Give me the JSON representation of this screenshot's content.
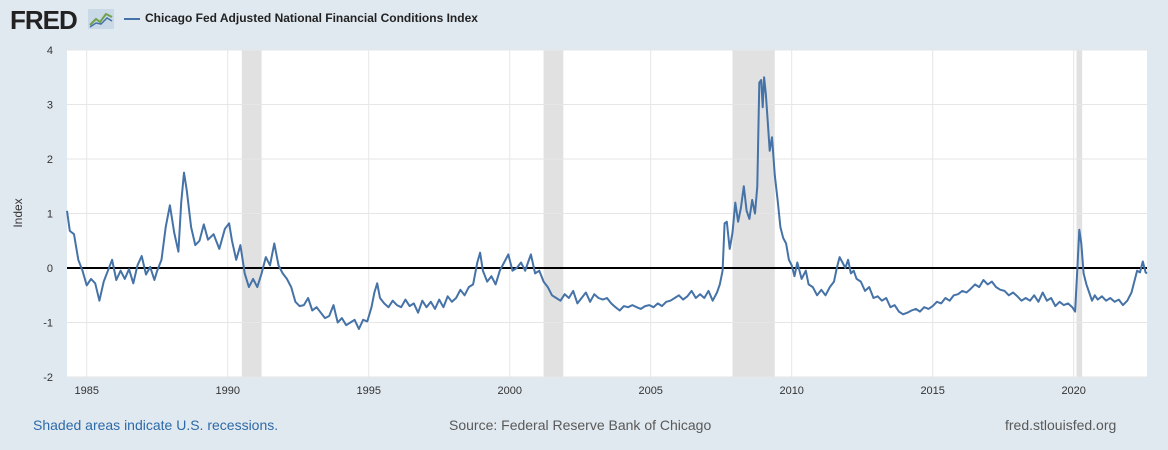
{
  "header": {
    "logo_text": "FRED",
    "logo_icon": "fred-line-graph-icon",
    "legend_label": "Chicago Fed Adjusted National Financial Conditions Index",
    "series_color": "#4572a7"
  },
  "footer": {
    "recession_note": "Shaded areas indicate U.S. recessions.",
    "source": "Source: Federal Reserve Bank of Chicago",
    "site": "fred.stlouisfed.org"
  },
  "chart_data": {
    "type": "line",
    "title": "",
    "xlabel": "",
    "ylabel": "Index",
    "xlim": [
      1984.3,
      2022.6
    ],
    "ylim": [
      -2,
      4
    ],
    "y_ticks": [
      4,
      3,
      2,
      1,
      0,
      -1,
      -2
    ],
    "x_ticks": [
      1985,
      1990,
      1995,
      2000,
      2005,
      2010,
      2015,
      2020
    ],
    "grid": true,
    "zero_line": true,
    "recessions": [
      [
        1990.5,
        1991.2
      ],
      [
        2001.2,
        2001.9
      ],
      [
        2007.9,
        2009.4
      ],
      [
        2020.1,
        2020.3
      ]
    ],
    "series": [
      {
        "values": [
          [
            1984.3,
            1.05
          ],
          [
            1984.4,
            0.68
          ],
          [
            1984.55,
            0.62
          ],
          [
            1984.7,
            0.15
          ],
          [
            1984.85,
            -0.05
          ],
          [
            1985.0,
            -0.32
          ],
          [
            1985.15,
            -0.2
          ],
          [
            1985.3,
            -0.28
          ],
          [
            1985.45,
            -0.6
          ],
          [
            1985.6,
            -0.25
          ],
          [
            1985.75,
            -0.05
          ],
          [
            1985.9,
            0.15
          ],
          [
            1986.05,
            -0.22
          ],
          [
            1986.2,
            -0.05
          ],
          [
            1986.35,
            -0.2
          ],
          [
            1986.5,
            -0.02
          ],
          [
            1986.65,
            -0.28
          ],
          [
            1986.8,
            0.05
          ],
          [
            1986.95,
            0.22
          ],
          [
            1987.1,
            -0.12
          ],
          [
            1987.25,
            0.02
          ],
          [
            1987.4,
            -0.22
          ],
          [
            1987.5,
            -0.05
          ],
          [
            1987.65,
            0.15
          ],
          [
            1987.8,
            0.75
          ],
          [
            1987.95,
            1.15
          ],
          [
            1988.1,
            0.65
          ],
          [
            1988.25,
            0.3
          ],
          [
            1988.35,
            1.2
          ],
          [
            1988.45,
            1.75
          ],
          [
            1988.55,
            1.42
          ],
          [
            1988.7,
            0.75
          ],
          [
            1988.85,
            0.42
          ],
          [
            1989.0,
            0.5
          ],
          [
            1989.15,
            0.8
          ],
          [
            1989.3,
            0.52
          ],
          [
            1989.5,
            0.62
          ],
          [
            1989.7,
            0.35
          ],
          [
            1989.9,
            0.72
          ],
          [
            1990.05,
            0.82
          ],
          [
            1990.15,
            0.5
          ],
          [
            1990.3,
            0.15
          ],
          [
            1990.45,
            0.42
          ],
          [
            1990.6,
            -0.1
          ],
          [
            1990.75,
            -0.35
          ],
          [
            1990.9,
            -0.2
          ],
          [
            1991.05,
            -0.35
          ],
          [
            1991.2,
            -0.1
          ],
          [
            1991.35,
            0.2
          ],
          [
            1991.5,
            0.05
          ],
          [
            1991.65,
            0.45
          ],
          [
            1991.8,
            0.05
          ],
          [
            1991.95,
            -0.1
          ],
          [
            1992.1,
            -0.2
          ],
          [
            1992.25,
            -0.35
          ],
          [
            1992.4,
            -0.62
          ],
          [
            1992.55,
            -0.7
          ],
          [
            1992.7,
            -0.68
          ],
          [
            1992.85,
            -0.55
          ],
          [
            1993.0,
            -0.78
          ],
          [
            1993.15,
            -0.72
          ],
          [
            1993.3,
            -0.82
          ],
          [
            1993.45,
            -0.92
          ],
          [
            1993.6,
            -0.88
          ],
          [
            1993.75,
            -0.68
          ],
          [
            1993.9,
            -1.0
          ],
          [
            1994.05,
            -0.92
          ],
          [
            1994.2,
            -1.05
          ],
          [
            1994.35,
            -1.0
          ],
          [
            1994.5,
            -0.95
          ],
          [
            1994.65,
            -1.12
          ],
          [
            1994.8,
            -0.95
          ],
          [
            1994.95,
            -0.98
          ],
          [
            1995.1,
            -0.72
          ],
          [
            1995.2,
            -0.45
          ],
          [
            1995.3,
            -0.28
          ],
          [
            1995.4,
            -0.55
          ],
          [
            1995.55,
            -0.65
          ],
          [
            1995.7,
            -0.72
          ],
          [
            1995.85,
            -0.6
          ],
          [
            1996.0,
            -0.68
          ],
          [
            1996.15,
            -0.72
          ],
          [
            1996.3,
            -0.58
          ],
          [
            1996.45,
            -0.7
          ],
          [
            1996.6,
            -0.65
          ],
          [
            1996.75,
            -0.82
          ],
          [
            1996.9,
            -0.6
          ],
          [
            1997.05,
            -0.72
          ],
          [
            1997.2,
            -0.62
          ],
          [
            1997.35,
            -0.75
          ],
          [
            1997.5,
            -0.58
          ],
          [
            1997.65,
            -0.72
          ],
          [
            1997.8,
            -0.52
          ],
          [
            1997.95,
            -0.62
          ],
          [
            1998.1,
            -0.55
          ],
          [
            1998.25,
            -0.4
          ],
          [
            1998.4,
            -0.5
          ],
          [
            1998.55,
            -0.35
          ],
          [
            1998.7,
            -0.3
          ],
          [
            1998.85,
            0.1
          ],
          [
            1998.95,
            0.28
          ],
          [
            1999.05,
            -0.05
          ],
          [
            1999.2,
            -0.25
          ],
          [
            1999.35,
            -0.15
          ],
          [
            1999.5,
            -0.3
          ],
          [
            1999.65,
            -0.05
          ],
          [
            1999.8,
            0.1
          ],
          [
            1999.95,
            0.25
          ],
          [
            2000.1,
            -0.05
          ],
          [
            2000.25,
            0.0
          ],
          [
            2000.4,
            0.1
          ],
          [
            2000.55,
            -0.05
          ],
          [
            2000.65,
            0.1
          ],
          [
            2000.75,
            0.25
          ],
          [
            2000.9,
            -0.1
          ],
          [
            2001.05,
            -0.05
          ],
          [
            2001.2,
            -0.25
          ],
          [
            2001.35,
            -0.35
          ],
          [
            2001.5,
            -0.5
          ],
          [
            2001.65,
            -0.55
          ],
          [
            2001.8,
            -0.6
          ],
          [
            2001.95,
            -0.48
          ],
          [
            2002.1,
            -0.55
          ],
          [
            2002.25,
            -0.42
          ],
          [
            2002.4,
            -0.65
          ],
          [
            2002.55,
            -0.55
          ],
          [
            2002.7,
            -0.45
          ],
          [
            2002.85,
            -0.62
          ],
          [
            2003.0,
            -0.48
          ],
          [
            2003.15,
            -0.55
          ],
          [
            2003.3,
            -0.58
          ],
          [
            2003.45,
            -0.55
          ],
          [
            2003.6,
            -0.65
          ],
          [
            2003.75,
            -0.72
          ],
          [
            2003.9,
            -0.78
          ],
          [
            2004.05,
            -0.7
          ],
          [
            2004.2,
            -0.72
          ],
          [
            2004.35,
            -0.68
          ],
          [
            2004.5,
            -0.72
          ],
          [
            2004.65,
            -0.75
          ],
          [
            2004.8,
            -0.7
          ],
          [
            2004.95,
            -0.68
          ],
          [
            2005.1,
            -0.72
          ],
          [
            2005.25,
            -0.65
          ],
          [
            2005.4,
            -0.7
          ],
          [
            2005.55,
            -0.62
          ],
          [
            2005.7,
            -0.6
          ],
          [
            2005.85,
            -0.55
          ],
          [
            2006.0,
            -0.5
          ],
          [
            2006.15,
            -0.58
          ],
          [
            2006.3,
            -0.52
          ],
          [
            2006.45,
            -0.42
          ],
          [
            2006.6,
            -0.55
          ],
          [
            2006.75,
            -0.48
          ],
          [
            2006.9,
            -0.55
          ],
          [
            2007.05,
            -0.42
          ],
          [
            2007.2,
            -0.6
          ],
          [
            2007.35,
            -0.45
          ],
          [
            2007.45,
            -0.3
          ],
          [
            2007.55,
            -0.05
          ],
          [
            2007.62,
            0.82
          ],
          [
            2007.7,
            0.85
          ],
          [
            2007.8,
            0.35
          ],
          [
            2007.9,
            0.65
          ],
          [
            2008.0,
            1.2
          ],
          [
            2008.1,
            0.85
          ],
          [
            2008.2,
            1.1
          ],
          [
            2008.3,
            1.5
          ],
          [
            2008.4,
            1.05
          ],
          [
            2008.5,
            0.9
          ],
          [
            2008.6,
            1.25
          ],
          [
            2008.7,
            1.0
          ],
          [
            2008.78,
            1.5
          ],
          [
            2008.85,
            3.4
          ],
          [
            2008.92,
            3.45
          ],
          [
            2008.97,
            2.95
          ],
          [
            2009.02,
            3.5
          ],
          [
            2009.08,
            3.2
          ],
          [
            2009.15,
            2.7
          ],
          [
            2009.22,
            2.15
          ],
          [
            2009.3,
            2.4
          ],
          [
            2009.4,
            1.7
          ],
          [
            2009.5,
            1.25
          ],
          [
            2009.6,
            0.75
          ],
          [
            2009.7,
            0.55
          ],
          [
            2009.8,
            0.45
          ],
          [
            2009.9,
            0.15
          ],
          [
            2010.0,
            0.05
          ],
          [
            2010.1,
            -0.15
          ],
          [
            2010.2,
            0.1
          ],
          [
            2010.35,
            -0.2
          ],
          [
            2010.5,
            -0.05
          ],
          [
            2010.6,
            -0.3
          ],
          [
            2010.75,
            -0.35
          ],
          [
            2010.9,
            -0.5
          ],
          [
            2011.05,
            -0.4
          ],
          [
            2011.2,
            -0.5
          ],
          [
            2011.35,
            -0.35
          ],
          [
            2011.5,
            -0.25
          ],
          [
            2011.6,
            0.0
          ],
          [
            2011.7,
            0.2
          ],
          [
            2011.8,
            0.1
          ],
          [
            2011.9,
            0.0
          ],
          [
            2012.0,
            0.15
          ],
          [
            2012.1,
            -0.1
          ],
          [
            2012.2,
            -0.05
          ],
          [
            2012.3,
            -0.2
          ],
          [
            2012.45,
            -0.25
          ],
          [
            2012.6,
            -0.42
          ],
          [
            2012.75,
            -0.35
          ],
          [
            2012.9,
            -0.55
          ],
          [
            2013.05,
            -0.52
          ],
          [
            2013.2,
            -0.6
          ],
          [
            2013.35,
            -0.55
          ],
          [
            2013.5,
            -0.72
          ],
          [
            2013.65,
            -0.68
          ],
          [
            2013.8,
            -0.8
          ],
          [
            2013.95,
            -0.85
          ],
          [
            2014.1,
            -0.82
          ],
          [
            2014.25,
            -0.78
          ],
          [
            2014.4,
            -0.75
          ],
          [
            2014.55,
            -0.8
          ],
          [
            2014.7,
            -0.72
          ],
          [
            2014.85,
            -0.75
          ],
          [
            2015.0,
            -0.7
          ],
          [
            2015.15,
            -0.62
          ],
          [
            2015.3,
            -0.65
          ],
          [
            2015.45,
            -0.55
          ],
          [
            2015.6,
            -0.6
          ],
          [
            2015.75,
            -0.5
          ],
          [
            2015.9,
            -0.48
          ],
          [
            2016.05,
            -0.42
          ],
          [
            2016.2,
            -0.45
          ],
          [
            2016.35,
            -0.38
          ],
          [
            2016.5,
            -0.3
          ],
          [
            2016.65,
            -0.35
          ],
          [
            2016.8,
            -0.22
          ],
          [
            2016.95,
            -0.3
          ],
          [
            2017.1,
            -0.25
          ],
          [
            2017.25,
            -0.35
          ],
          [
            2017.4,
            -0.4
          ],
          [
            2017.55,
            -0.42
          ],
          [
            2017.7,
            -0.5
          ],
          [
            2017.85,
            -0.45
          ],
          [
            2018.0,
            -0.52
          ],
          [
            2018.15,
            -0.6
          ],
          [
            2018.3,
            -0.55
          ],
          [
            2018.45,
            -0.6
          ],
          [
            2018.6,
            -0.5
          ],
          [
            2018.75,
            -0.62
          ],
          [
            2018.9,
            -0.45
          ],
          [
            2019.05,
            -0.6
          ],
          [
            2019.2,
            -0.55
          ],
          [
            2019.35,
            -0.7
          ],
          [
            2019.5,
            -0.62
          ],
          [
            2019.65,
            -0.68
          ],
          [
            2019.8,
            -0.65
          ],
          [
            2019.95,
            -0.72
          ],
          [
            2020.05,
            -0.8
          ],
          [
            2020.12,
            -0.1
          ],
          [
            2020.2,
            0.7
          ],
          [
            2020.27,
            0.45
          ],
          [
            2020.35,
            -0.1
          ],
          [
            2020.45,
            -0.3
          ],
          [
            2020.55,
            -0.45
          ],
          [
            2020.65,
            -0.6
          ],
          [
            2020.75,
            -0.5
          ],
          [
            2020.85,
            -0.58
          ],
          [
            2021.0,
            -0.52
          ],
          [
            2021.15,
            -0.6
          ],
          [
            2021.3,
            -0.55
          ],
          [
            2021.45,
            -0.62
          ],
          [
            2021.6,
            -0.58
          ],
          [
            2021.75,
            -0.68
          ],
          [
            2021.9,
            -0.6
          ],
          [
            2022.05,
            -0.45
          ],
          [
            2022.15,
            -0.25
          ],
          [
            2022.25,
            -0.05
          ],
          [
            2022.35,
            -0.08
          ],
          [
            2022.45,
            0.12
          ],
          [
            2022.55,
            -0.08
          ],
          [
            2022.6,
            -0.1
          ]
        ]
      }
    ]
  }
}
